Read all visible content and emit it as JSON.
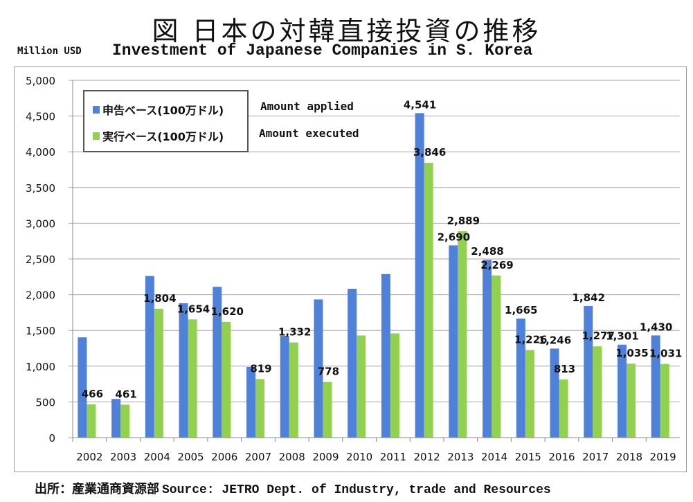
{
  "titles": {
    "jp": "図 日本の対韓直接投資の推移",
    "en": "Investment of Japanese Companies in S. Korea",
    "unit": "Million USD"
  },
  "legend": {
    "applied_jp": "申告ベース(100万ドル)",
    "applied_en": "Amount applied",
    "executed_jp": "実行ベース(100万ドル)",
    "executed_en": "Amount executed"
  },
  "source": {
    "jp": "出所：産業通商資源部",
    "en": "Source: JETRO Dept. of Industry, trade and Resources"
  },
  "chart_data": {
    "type": "bar",
    "categories": [
      "2002",
      "2003",
      "2004",
      "2005",
      "2006",
      "2007",
      "2008",
      "2009",
      "2010",
      "2011",
      "2012",
      "2013",
      "2014",
      "2015",
      "2016",
      "2017",
      "2018",
      "2019"
    ],
    "series": [
      {
        "name": "申告ベース(100万ドル)",
        "color": "#4f81d8",
        "values": [
          1403,
          541,
          2262,
          1880,
          2110,
          989,
          1424,
          1934,
          2083,
          2289,
          4541,
          2690,
          2488,
          1665,
          1246,
          1842,
          1301,
          1430
        ],
        "labels": [
          null,
          null,
          null,
          null,
          null,
          null,
          null,
          null,
          null,
          null,
          "4,541",
          "2,690",
          "2,488",
          "1,665",
          "1,246",
          "1,842",
          "1,301",
          "1,430"
        ]
      },
      {
        "name": "実行ベース(100万ドル)",
        "color": "#92d050",
        "values": [
          466,
          461,
          1804,
          1654,
          1620,
          819,
          1332,
          778,
          1430,
          1458,
          3846,
          2889,
          2269,
          1226,
          813,
          1277,
          1035,
          1031
        ],
        "labels": [
          "466",
          "461",
          "1,804",
          "1,654",
          "1,620",
          "819",
          "1,332",
          "778",
          null,
          null,
          "3,846",
          "2,889",
          "2,269",
          "1,226",
          "813",
          "1,277",
          "1,035",
          "1,031"
        ]
      }
    ],
    "yticks": [
      "0",
      "500",
      "1,000",
      "1,500",
      "2,000",
      "2,500",
      "3,000",
      "3,500",
      "4,000",
      "4,500",
      "5,000"
    ],
    "ylim": [
      0,
      5000
    ],
    "xlabel": "",
    "ylabel": "",
    "grid": true,
    "legend_position": "top-left"
  }
}
